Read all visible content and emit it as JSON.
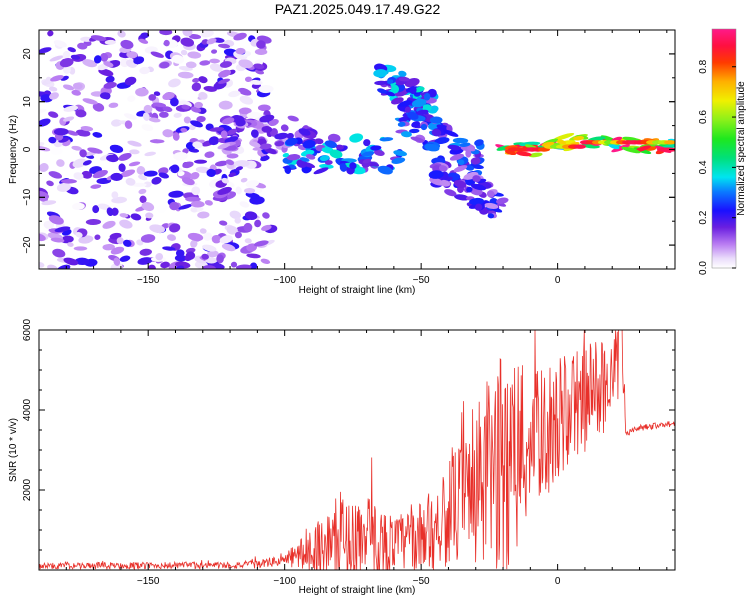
{
  "title": "PAZ1.2025.049.17.49.G22",
  "chart_data": [
    {
      "type": "heatmap",
      "title": "PAZ1.2025.049.17.49.G22",
      "xlabel": "Height of straight line (km)",
      "ylabel": "Frequency (Hz)",
      "xlim": [
        -190,
        43
      ],
      "ylim": [
        -25,
        25
      ],
      "x_ticks": [
        -150,
        -100,
        -50,
        0
      ],
      "y_ticks": [
        -20,
        -10,
        0,
        10,
        20
      ],
      "colorbar": {
        "label": "Normalized spectral amplitude",
        "range": [
          0.0,
          0.95
        ],
        "ticks": [
          0.0,
          0.2,
          0.4,
          0.6,
          0.8
        ]
      },
      "features": [
        {
          "description": "speckled low-amplitude noise",
          "x_range": [
            -190,
            -105
          ],
          "y_range": [
            -25,
            25
          ],
          "amplitude": 0.1
        },
        {
          "x_range": [
            -125,
            -90
          ],
          "y_center": 3,
          "amplitude": 0.15
        },
        {
          "x_range": [
            -100,
            -57
          ],
          "y_center": -1,
          "amplitude": 0.3
        },
        {
          "x_range": [
            -65,
            -45
          ],
          "y_center": 14,
          "amplitude": 0.3
        },
        {
          "x_range": [
            -58,
            -28
          ],
          "y_center": 5,
          "amplitude": 0.25
        },
        {
          "x_range": [
            -45,
            -20
          ],
          "y_center": -7,
          "amplitude": 0.2
        },
        {
          "x_range": [
            -20,
            43
          ],
          "y_center": 1,
          "amplitude": 0.8
        }
      ]
    },
    {
      "type": "line",
      "xlabel": "Height of straight line (km)",
      "ylabel": "SNR (10 * v/v)",
      "xlim": [
        -190,
        43
      ],
      "ylim": [
        0,
        6000
      ],
      "x_ticks": [
        -150,
        -100,
        -50,
        0
      ],
      "y_ticks": [
        2000,
        4000,
        6000
      ],
      "color": "#e8302a",
      "profile": {
        "x": [
          -190,
          -120,
          -110,
          -100,
          -90,
          -80,
          -70,
          -60,
          -50,
          -40,
          -30,
          -25,
          -20,
          -15,
          -10,
          0,
          10,
          20,
          24,
          25,
          30,
          40,
          43
        ],
        "mean": [
          100,
          120,
          140,
          250,
          500,
          700,
          700,
          650,
          800,
          1400,
          2000,
          2400,
          2700,
          2800,
          3200,
          3700,
          4300,
          4800,
          5200,
          3400,
          3550,
          3650,
          3650
        ],
        "spike": [
          80,
          90,
          100,
          150,
          600,
          1200,
          1200,
          700,
          900,
          1300,
          2000,
          2600,
          2800,
          2800,
          1700,
          1600,
          1400,
          1200,
          800,
          100,
          100,
          100,
          100
        ]
      },
      "peak": {
        "x": 23,
        "y": 6000
      }
    }
  ]
}
